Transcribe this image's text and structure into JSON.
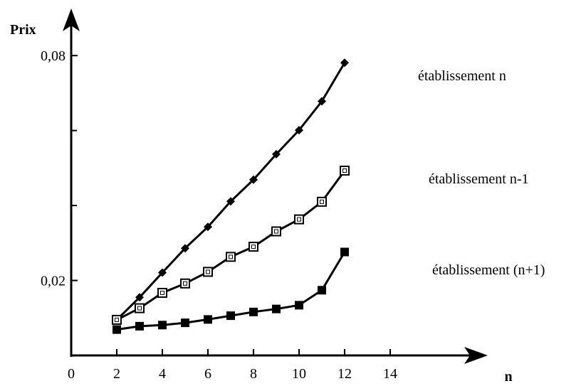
{
  "chart_data": {
    "type": "line",
    "ylabel": "Prix",
    "xlabel": "n",
    "xlim": [
      0,
      18
    ],
    "ylim": [
      0.0,
      0.088
    ],
    "x_ticks": [
      0,
      2,
      4,
      6,
      8,
      10,
      12,
      14
    ],
    "x_tick_labels": [
      "0",
      "2",
      "4",
      "6",
      "8",
      "10",
      "12",
      "14"
    ],
    "y_ticks": [
      0.02,
      0.08
    ],
    "y_tick_labels": [
      "0,02",
      "0,08"
    ],
    "y_minor_ticks": [
      0.04,
      0.06
    ],
    "grid": false,
    "series": [
      {
        "name": "établissement n",
        "marker": "diamond",
        "x": [
          2,
          3,
          4,
          5,
          6,
          7,
          8,
          9,
          10,
          11,
          12
        ],
        "y": [
          0.0095,
          0.0155,
          0.0221,
          0.0286,
          0.0343,
          0.0411,
          0.0469,
          0.0537,
          0.0601,
          0.0678,
          0.0781
        ]
      },
      {
        "name": "établissement n-1",
        "marker": "open-square",
        "x": [
          2,
          3,
          4,
          5,
          6,
          7,
          8,
          9,
          10,
          11,
          12
        ],
        "y": [
          0.0095,
          0.0126,
          0.0167,
          0.0192,
          0.0223,
          0.0263,
          0.029,
          0.0331,
          0.0363,
          0.041,
          0.0493
        ]
      },
      {
        "name": "établissement (n+1)",
        "marker": "filled-square",
        "x": [
          2,
          3,
          4,
          5,
          6,
          7,
          8,
          9,
          10,
          11,
          12
        ],
        "y": [
          0.0069,
          0.0078,
          0.0081,
          0.0087,
          0.0096,
          0.0106,
          0.0116,
          0.0124,
          0.0134,
          0.0174,
          0.0276
        ]
      }
    ]
  }
}
